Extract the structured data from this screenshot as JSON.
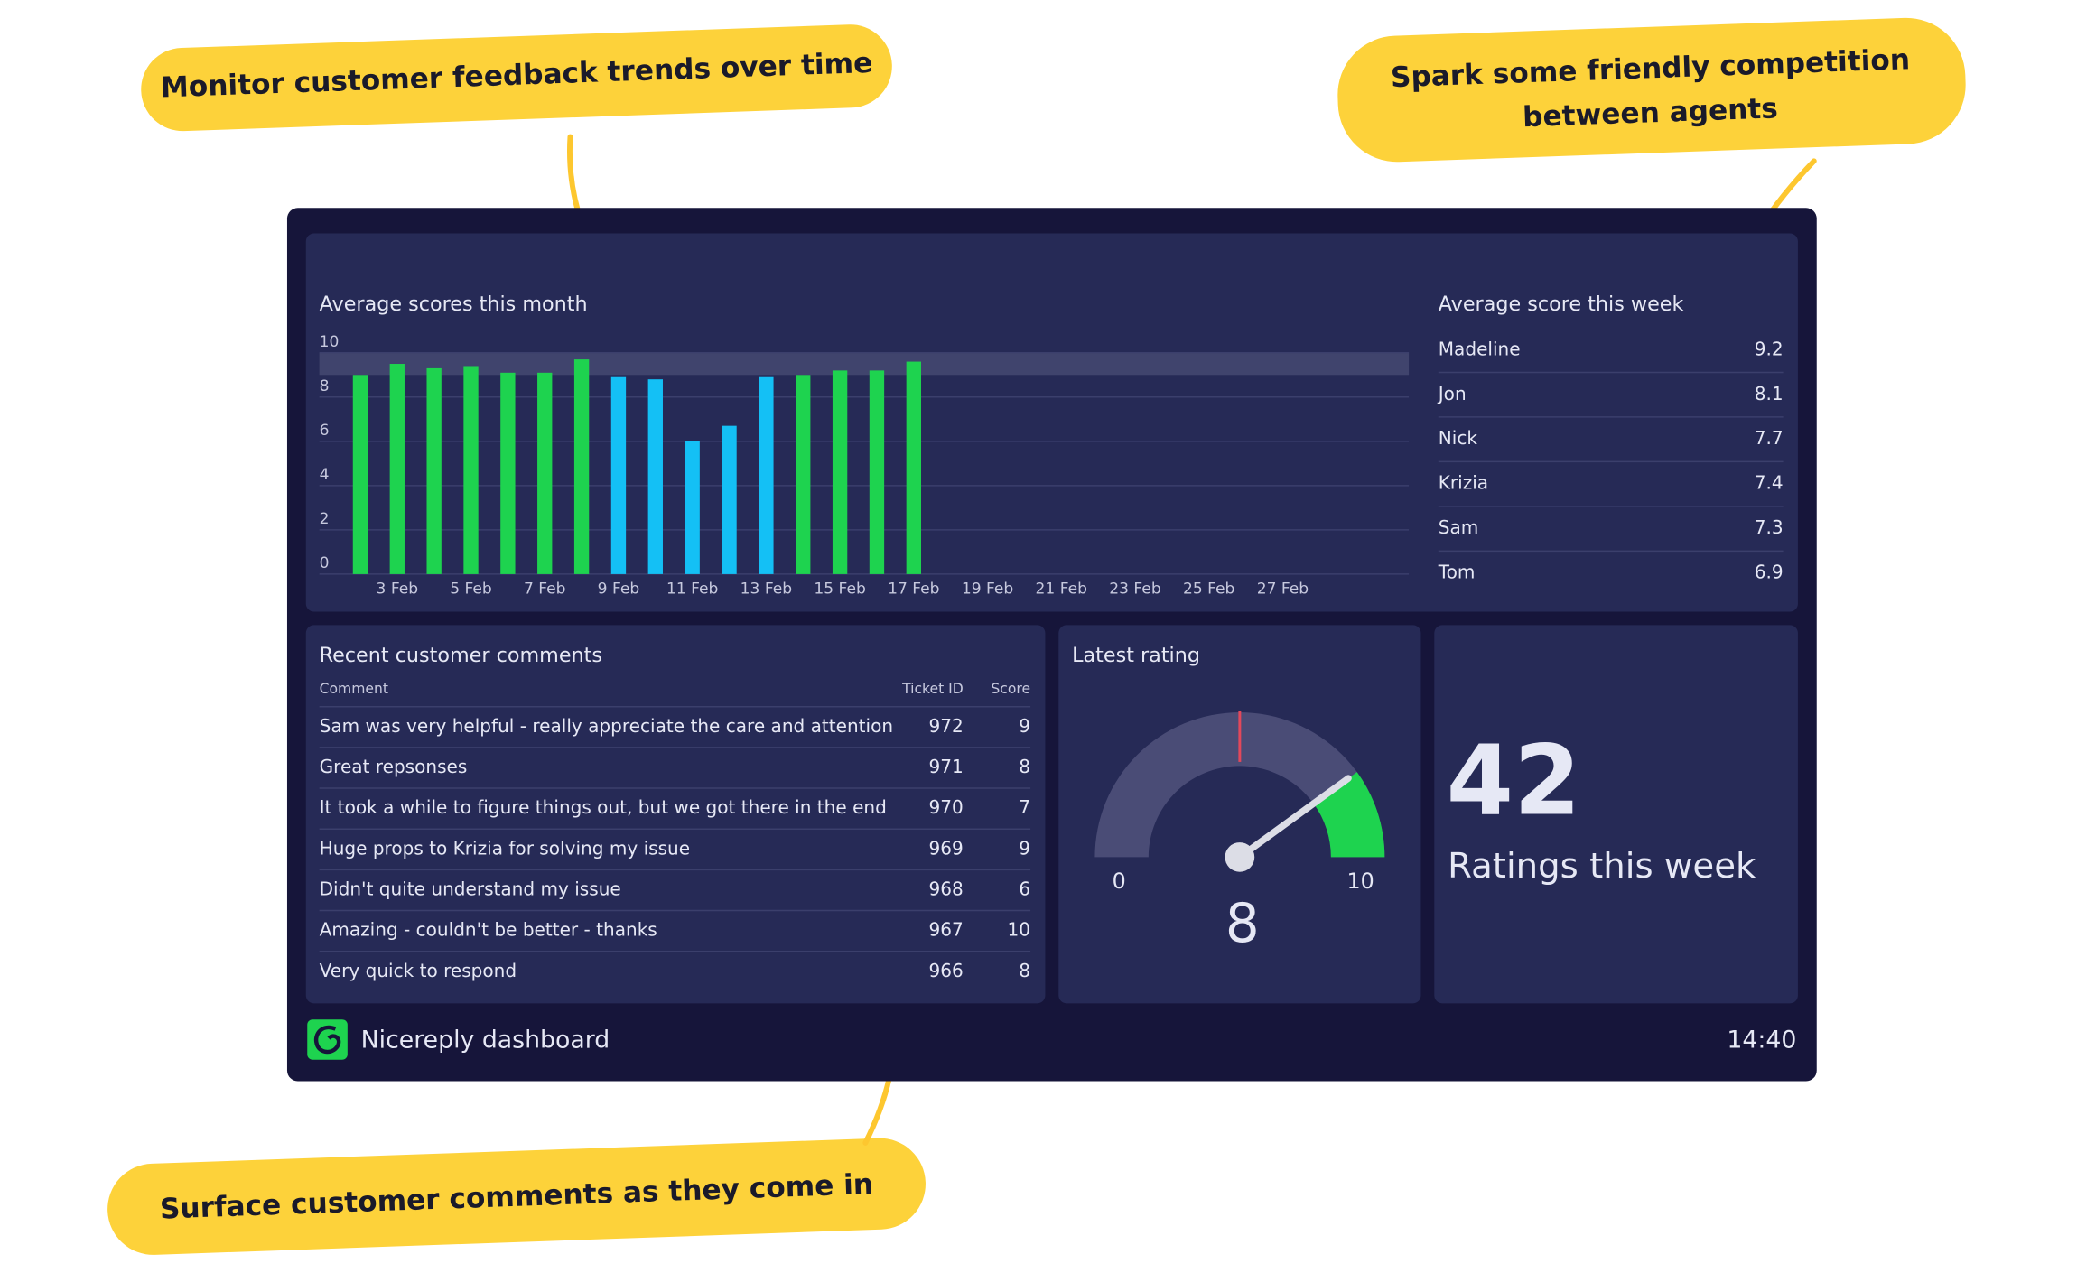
{
  "callouts": [
    {
      "lines": [
        "Monitor customer feedback trends over time"
      ]
    },
    {
      "lines": [
        "Spark some friendly competition",
        "between agents"
      ]
    },
    {
      "lines": [
        "Surface customer comments as they come in"
      ]
    }
  ],
  "chart_data": {
    "type": "bar",
    "title": "Average scores this month",
    "categories": [
      null,
      null,
      "3 Feb",
      null,
      "5 Feb",
      null,
      "7 Feb",
      null,
      "9 Feb",
      null,
      "11 Feb",
      null,
      "13 Feb",
      null,
      "15 Feb",
      null,
      "17 Feb",
      null,
      "19 Feb",
      null,
      "21 Feb",
      null,
      "23 Feb",
      null,
      "25 Feb",
      null,
      "27 Feb",
      null,
      null
    ],
    "values": [
      null,
      9.0,
      9.5,
      9.3,
      9.4,
      9.1,
      9.1,
      9.7,
      8.9,
      8.8,
      6.0,
      6.7,
      8.9,
      9.0,
      9.2,
      9.2,
      9.6,
      null,
      null,
      null,
      null,
      null,
      null,
      null,
      null,
      null,
      null,
      null,
      null
    ],
    "colors": [
      null,
      "#1ed34f",
      "#1ed34f",
      "#1ed34f",
      "#1ed34f",
      "#1ed34f",
      "#1ed34f",
      "#1ed34f",
      "#14c0f5",
      "#14c0f5",
      "#14c0f5",
      "#14c0f5",
      "#14c0f5",
      "#1ed34f",
      "#1ed34f",
      "#1ed34f",
      "#1ed34f",
      null,
      null,
      null,
      null,
      null,
      null,
      null,
      null,
      null,
      null,
      null,
      null
    ],
    "ylim": [
      0,
      10
    ],
    "yticks": [
      0,
      2,
      4,
      6,
      8,
      10
    ],
    "highlight_band": [
      9,
      10
    ],
    "grid": true
  },
  "leaderboard": {
    "title": "Average score this week",
    "rows": [
      [
        "Madeline",
        9.2
      ],
      [
        "Jon",
        8.1
      ],
      [
        "Nick",
        7.7
      ],
      [
        "Krizia",
        7.4
      ],
      [
        "Sam",
        7.3
      ],
      [
        "Tom",
        6.9
      ]
    ]
  },
  "comments": {
    "title": "Recent customer comments",
    "columns": [
      "Comment",
      "Ticket ID",
      "Score"
    ],
    "rows": [
      [
        "Sam was very helpful - really appreciate the care and attention",
        972,
        9
      ],
      [
        "Great repsonses",
        971,
        8
      ],
      [
        "It took a while to figure things out, but we got there in the end",
        970,
        7
      ],
      [
        "Huge props to Krizia for solving my issue",
        969,
        9
      ],
      [
        "Didn't quite understand my issue",
        968,
        6
      ],
      [
        "Amazing - couldn't be better - thanks",
        967,
        10
      ],
      [
        "Very quick to respond",
        966,
        8
      ]
    ]
  },
  "gauge": {
    "title": "Latest rating",
    "min": 0,
    "max": 10,
    "value": 8
  },
  "counter": {
    "value": 42,
    "label": "Ratings this week"
  },
  "footer": {
    "name": "Nicereply dashboard",
    "time": "14:40"
  }
}
